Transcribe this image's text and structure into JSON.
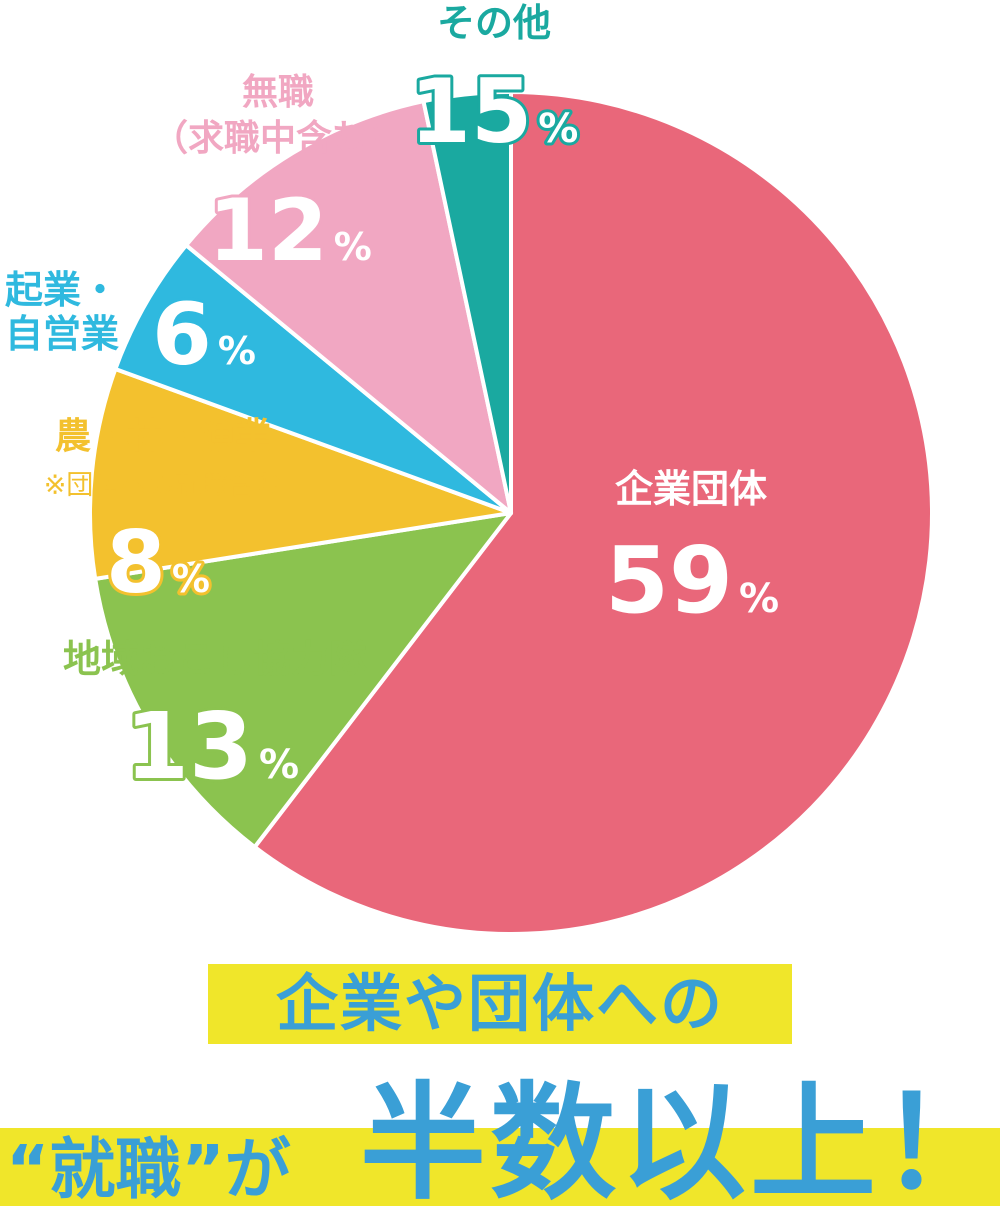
{
  "chart_data": {
    "type": "pie",
    "slices": [
      {
        "name": "企業団体",
        "value": 59,
        "label": "59",
        "color": "#e9677a"
      },
      {
        "name": "地域おこし協力隊",
        "value": 13,
        "label": "13",
        "color": "#8bc34f"
      },
      {
        "name": "農・林・漁業",
        "note": "※団体への就職含む",
        "value": 8,
        "label": "8",
        "color": "#f3c12e"
      },
      {
        "name": "起業・\n自営業",
        "value": 6,
        "label": "6",
        "color": "#2fb9df"
      },
      {
        "name": "無職\n（求職中含む）",
        "value": 12,
        "label": "12",
        "color": "#f1a7c2"
      },
      {
        "name": "その他",
        "value": 15,
        "label": "15",
        "color": "#1aa9a0"
      }
    ],
    "unit": "%"
  },
  "headline": {
    "line1": "企業や団体への",
    "line2_small": "“就職”が",
    "line2_big": "半数以上！"
  }
}
